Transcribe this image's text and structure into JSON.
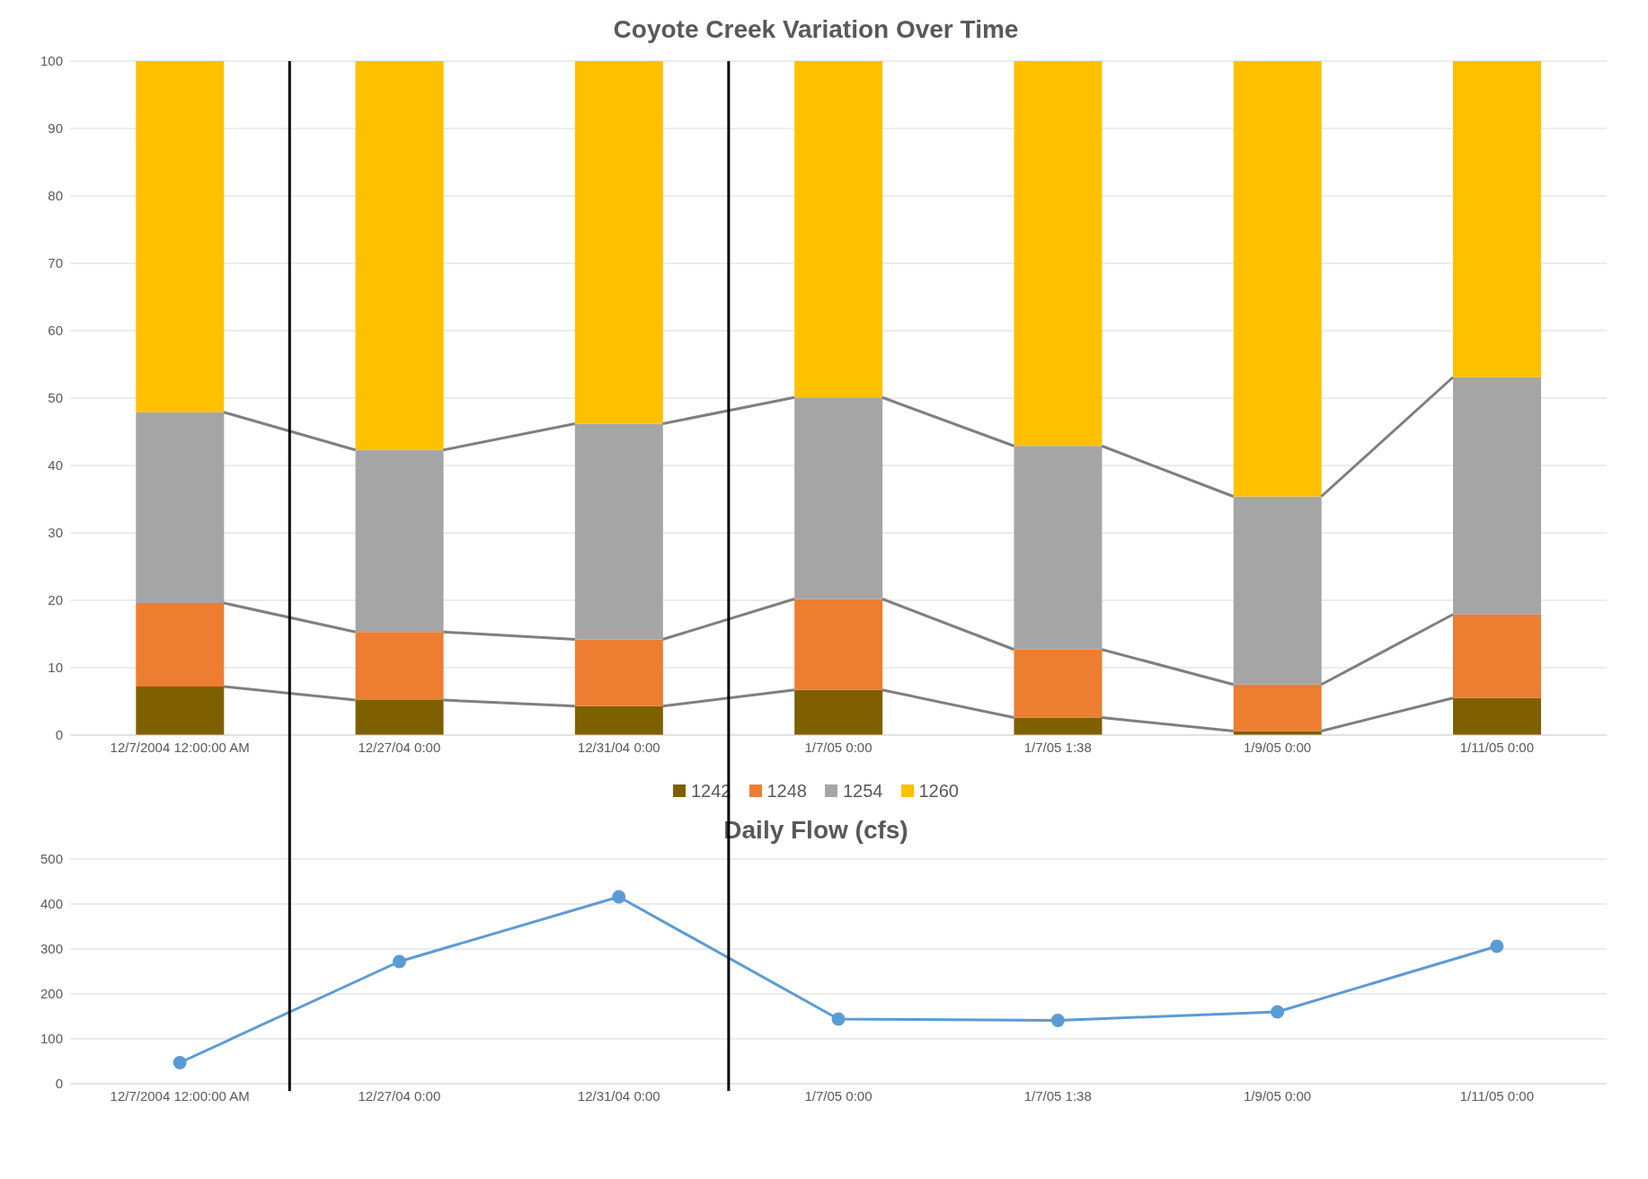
{
  "chart_data": [
    {
      "type": "bar",
      "title": "Coyote Creek Variation Over Time",
      "stacked": true,
      "categories": [
        "12/7/2004  12:00:00 AM",
        "12/27/04 0:00",
        "12/31/04 0:00",
        "1/7/05 0:00",
        "1/7/05 1:38",
        "1/9/05 0:00",
        "1/11/05 0:00"
      ],
      "series": [
        {
          "name": "1242",
          "color": "#7f6000",
          "values": [
            7.2,
            5.2,
            4.3,
            6.7,
            2.6,
            0.6,
            5.5
          ]
        },
        {
          "name": "1248",
          "color": "#ed7d31",
          "values": [
            12.4,
            10.1,
            9.9,
            13.5,
            10.1,
            6.9,
            12.4
          ]
        },
        {
          "name": "1254",
          "color": "#a5a5a5",
          "values": [
            28.3,
            27.0,
            32.0,
            29.9,
            30.2,
            27.9,
            35.2
          ]
        },
        {
          "name": "1260",
          "color": "#ffc000",
          "values": [
            52.1,
            57.7,
            53.8,
            49.9,
            57.1,
            64.6,
            46.9
          ]
        }
      ],
      "ylim": [
        0,
        100
      ],
      "yticks": [
        0,
        10,
        20,
        30,
        40,
        50,
        60,
        70,
        80,
        90,
        100
      ],
      "grid": "y",
      "legend": "bottom"
    },
    {
      "type": "line",
      "title": "Daily Flow (cfs)",
      "categories": [
        "12/7/2004  12:00:00 AM",
        "12/27/04 0:00",
        "12/31/04 0:00",
        "1/7/05 0:00",
        "1/7/05 1:38",
        "1/9/05 0:00",
        "1/11/05 0:00"
      ],
      "series": [
        {
          "color": "#5b9bd5",
          "values": [
            47,
            272,
            416,
            144,
            141,
            160,
            306
          ]
        }
      ],
      "ylim": [
        0,
        500
      ],
      "yticks": [
        0,
        100,
        200,
        300,
        400,
        500
      ],
      "grid": "y",
      "marker": "circle"
    }
  ]
}
